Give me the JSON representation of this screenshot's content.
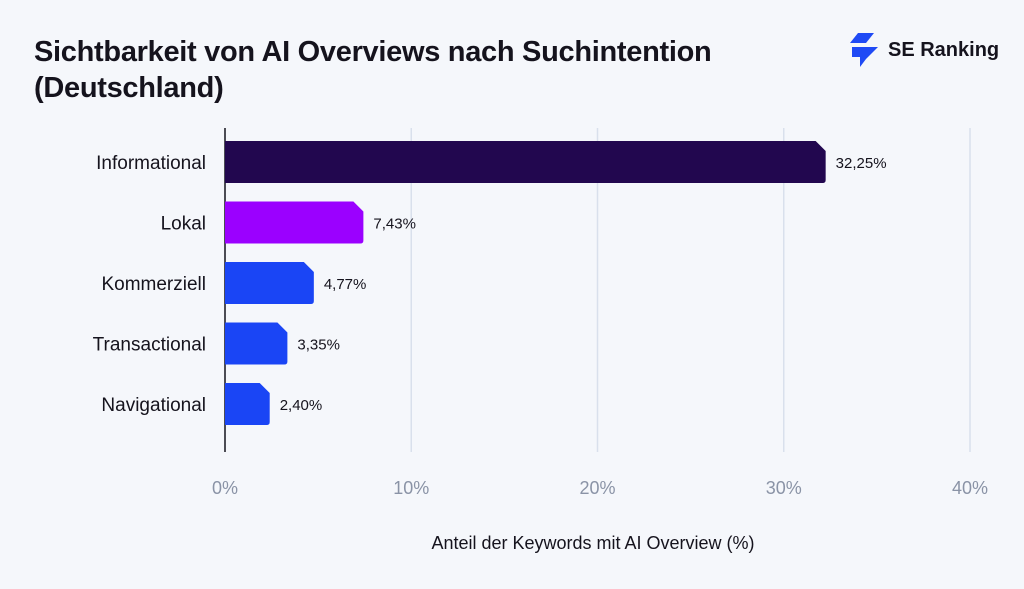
{
  "title": "Sichtbarkeit von AI Overviews nach Suchintention (Deutschland)",
  "logo": {
    "text": "SE Ranking",
    "icon": "se-ranking-bolt-icon",
    "color": "#1f4af5"
  },
  "chart_data": {
    "type": "bar",
    "orientation": "horizontal",
    "title": "Sichtbarkeit von AI Overviews nach Suchintention (Deutschland)",
    "xlabel": "Anteil der Keywords mit AI Overview (%)",
    "ylabel": "",
    "categories": [
      "Informational",
      "Lokal",
      "Kommerziell",
      "Transactional",
      "Navigational"
    ],
    "values": [
      32.25,
      7.43,
      4.77,
      3.35,
      2.4
    ],
    "data_labels": [
      "32,25%",
      "7,43%",
      "4,77%",
      "3,35%",
      "2,40%"
    ],
    "colors": [
      "#22074f",
      "#9b00ff",
      "#1a45f5",
      "#1a45f5",
      "#1a45f5"
    ],
    "xlim": [
      0,
      40
    ],
    "xticks": [
      0,
      10,
      20,
      30,
      40
    ],
    "xtick_labels": [
      "0%",
      "10%",
      "20%",
      "30%",
      "40%"
    ],
    "grid": true
  }
}
